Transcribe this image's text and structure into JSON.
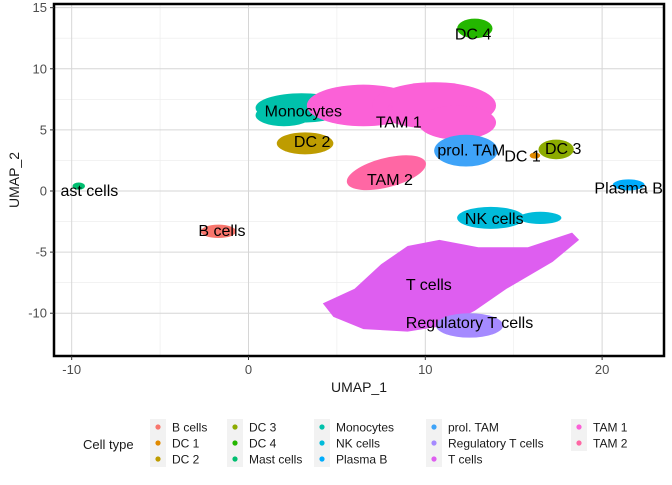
{
  "chart_data": {
    "type": "scatter",
    "xlabel": "UMAP_1",
    "ylabel": "UMAP_2",
    "xlim": [
      -11,
      23.5
    ],
    "ylim": [
      -13.5,
      15.3
    ],
    "x_ticks": [
      -10,
      0,
      10,
      20
    ],
    "y_ticks": [
      -10,
      -5,
      0,
      5,
      10,
      15
    ],
    "x_tick_labels": [
      "-10",
      "0",
      "10",
      "20"
    ],
    "y_tick_labels": [
      "-10",
      "-5",
      "0",
      "5",
      "10",
      "15"
    ],
    "grid": true,
    "legend_title": "Cell type",
    "legend_position": "bottom",
    "series": [
      {
        "name": "B cells",
        "color": "#F8766D",
        "x": -1.7,
        "y": -3.3
      },
      {
        "name": "DC 1",
        "color": "#E18A00",
        "x": 16.2,
        "y": 2.9
      },
      {
        "name": "DC 2",
        "color": "#BE9C00",
        "x": 3.2,
        "y": 3.9
      },
      {
        "name": "DC 3",
        "color": "#8CAB00",
        "x": 17.4,
        "y": 3.4
      },
      {
        "name": "DC 4",
        "color": "#24B700",
        "x": 12.8,
        "y": 13.3
      },
      {
        "name": "Mast cells",
        "color": "#00BE70",
        "x": -9.6,
        "y": 0.4
      },
      {
        "name": "Monocytes",
        "color": "#00C1AB",
        "x": 3.0,
        "y": 6.4
      },
      {
        "name": "NK cells",
        "color": "#00BBDA",
        "x": 13.8,
        "y": -2.2
      },
      {
        "name": "Plasma B",
        "color": "#00ACFC",
        "x": 21.5,
        "y": 0.5
      },
      {
        "name": "prol. TAM",
        "color": "#3EA3F8",
        "x": 12.3,
        "y": 3.3
      },
      {
        "name": "Regulatory T cells",
        "color": "#A58AFF",
        "x": 12.5,
        "y": -11.0
      },
      {
        "name": "T cells",
        "color": "#DE5EF0",
        "x": 10.0,
        "y": -8.0
      },
      {
        "name": "TAM 1",
        "color": "#FB61D7",
        "x": 8.0,
        "y": 6.8
      },
      {
        "name": "TAM 2",
        "color": "#FF67A4",
        "x": 7.7,
        "y": 1.4
      }
    ],
    "cluster_labels": [
      {
        "text": "DC 4",
        "x": 12.7,
        "y": 12.9
      },
      {
        "text": "Monocytes",
        "x": 3.1,
        "y": 6.6
      },
      {
        "text": "TAM 1",
        "x": 8.5,
        "y": 5.7
      },
      {
        "text": "DC 2",
        "x": 3.6,
        "y": 4.1
      },
      {
        "text": "prol. TAM",
        "x": 12.6,
        "y": 3.4
      },
      {
        "text": "DC 3",
        "x": 17.8,
        "y": 3.5
      },
      {
        "text": "DC 1",
        "x": 15.5,
        "y": 2.9
      },
      {
        "text": "TAM 2",
        "x": 8.0,
        "y": 1.0
      },
      {
        "text": "Plasma B",
        "x": 21.5,
        "y": 0.3
      },
      {
        "text": "ast cells",
        "x": -9.0,
        "y": 0.1
      },
      {
        "text": "NK cells",
        "x": 13.9,
        "y": -2.2
      },
      {
        "text": "B cells",
        "x": -1.5,
        "y": -3.2
      },
      {
        "text": "T cells",
        "x": 10.2,
        "y": -7.6
      },
      {
        "text": "Regulatory T cells",
        "x": 12.5,
        "y": -10.7
      }
    ]
  }
}
